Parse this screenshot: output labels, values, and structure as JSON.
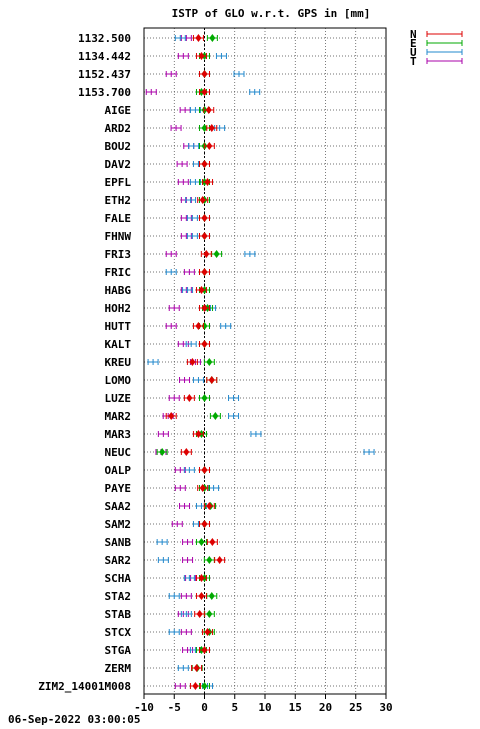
{
  "chart_data": {
    "type": "scatter",
    "title": "ISTP of GLO w.r.t. GPS in [mm]",
    "xlim": [
      -10,
      30
    ],
    "xticks": [
      -10,
      -5,
      0,
      5,
      10,
      15,
      20,
      25,
      30
    ],
    "grid": true,
    "legend_position": "top-right",
    "series": [
      {
        "name": "N",
        "color": "#dd0000"
      },
      {
        "name": "E",
        "color": "#00aa00"
      },
      {
        "name": "U",
        "color": "#2288cc"
      },
      {
        "name": "T",
        "color": "#aa00aa"
      }
    ],
    "stations": [
      {
        "label": "1132.500",
        "N": -1,
        "E": 1.3,
        "U": -4,
        "T": -3
      },
      {
        "label": "1134.442",
        "N": -0.5,
        "E": 0,
        "U": 2.8,
        "T": -3.5
      },
      {
        "label": "1152.437",
        "N": 0,
        "E": 0,
        "U": 5.7,
        "T": -5.5
      },
      {
        "label": "1153.700",
        "N": 0,
        "E": -0.5,
        "U": 8.3,
        "T": -8.8
      },
      {
        "label": "AIGE",
        "N": 0.7,
        "E": 0,
        "U": -1.5,
        "T": -3.2
      },
      {
        "label": "ARD2",
        "N": 1.2,
        "E": 0,
        "U": 2.5,
        "T": -4.7
      },
      {
        "label": "BOU2",
        "N": 0.8,
        "E": 0,
        "U": -1.8,
        "T": -2.6
      },
      {
        "label": "DAV2",
        "N": 0,
        "E": 0,
        "U": -1,
        "T": -3.7
      },
      {
        "label": "EPFL",
        "N": 0.5,
        "E": 0,
        "U": -1.5,
        "T": -3.5
      },
      {
        "label": "ETH2",
        "N": -0.3,
        "E": 0,
        "U": -2.3,
        "T": -3
      },
      {
        "label": "FALE",
        "N": 0,
        "E": 0,
        "U": -2,
        "T": -3
      },
      {
        "label": "FHNW",
        "N": 0,
        "E": 0,
        "U": -2,
        "T": -3
      },
      {
        "label": "FRI3",
        "N": 0.3,
        "E": 2,
        "U": 7.5,
        "T": -5.5
      },
      {
        "label": "FRIC",
        "N": 0,
        "E": 0,
        "U": -5.5,
        "T": -2.5
      },
      {
        "label": "HABG",
        "N": -0.5,
        "E": 0,
        "U": -2.8,
        "T": -3
      },
      {
        "label": "HOH2",
        "N": 0,
        "E": 0.5,
        "U": 1,
        "T": -5
      },
      {
        "label": "HUTT",
        "N": -1,
        "E": 0,
        "U": 3.5,
        "T": -5.5
      },
      {
        "label": "KALT",
        "N": 0,
        "E": 0,
        "U": -2.2,
        "T": -3.5
      },
      {
        "label": "KREU",
        "N": -2,
        "E": 0.8,
        "U": -8.5,
        "T": -1.5
      },
      {
        "label": "LOMO",
        "N": 1.2,
        "E": 1.2,
        "U": -1,
        "T": -3.3
      },
      {
        "label": "LUZE",
        "N": -2.5,
        "E": 0,
        "U": 4.8,
        "T": -5
      },
      {
        "label": "MAR2",
        "N": -5.5,
        "E": 1.8,
        "U": 4.8,
        "T": -6
      },
      {
        "label": "MAR3",
        "N": -1,
        "E": -0.5,
        "U": 8.5,
        "T": -6.8
      },
      {
        "label": "NEUC",
        "N": -3,
        "E": -7,
        "U": 27.2,
        "T": -7.2
      },
      {
        "label": "OALP",
        "N": 0,
        "E": 0,
        "U": -2.5,
        "T": -4
      },
      {
        "label": "PAYE",
        "N": -0.3,
        "E": 0,
        "U": 1.5,
        "T": -4
      },
      {
        "label": "SAA2",
        "N": 0.8,
        "E": 1,
        "U": -0.5,
        "T": -3.3
      },
      {
        "label": "SAM2",
        "N": 0,
        "E": 0,
        "U": -1,
        "T": -4.5
      },
      {
        "label": "SANB",
        "N": 1.3,
        "E": -0.5,
        "U": -7,
        "T": -2.8
      },
      {
        "label": "SAR2",
        "N": 2.5,
        "E": 0.8,
        "U": -6.8,
        "T": -2.8
      },
      {
        "label": "SCHA",
        "N": -0.5,
        "E": 0,
        "U": -2.5,
        "T": -2.3
      },
      {
        "label": "STA2",
        "N": -0.5,
        "E": 1.2,
        "U": -5,
        "T": -3
      },
      {
        "label": "STAB",
        "N": -0.8,
        "E": 0.8,
        "U": -3,
        "T": -3.5
      },
      {
        "label": "STCX",
        "N": 0.5,
        "E": 0.8,
        "U": -5,
        "T": -3
      },
      {
        "label": "STGA",
        "N": 0,
        "E": -0.5,
        "U": -1.5,
        "T": -2.8
      },
      {
        "label": "ZERM",
        "N": -1.3,
        "E": -1.2,
        "U": -3.5,
        "T": -1.3
      },
      {
        "label": "ZIM2_14001M008",
        "N": -1.5,
        "E": 0,
        "U": 0.5,
        "T": -4
      }
    ]
  },
  "footer": {
    "timestamp": "06-Sep-2022 03:00:05"
  }
}
